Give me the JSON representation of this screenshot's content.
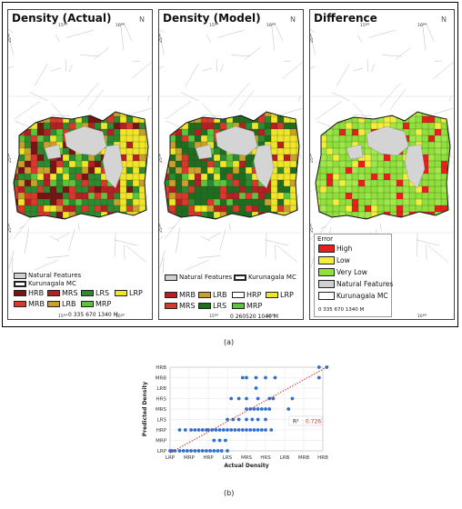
{
  "figure_a": {
    "panels": [
      {
        "title": "Density (Actual)"
      },
      {
        "title": "Density (Model)"
      },
      {
        "title": "Difference"
      }
    ],
    "coord_labels": {
      "x_left": "15ᴮᴹ",
      "x_right": "16ᴮᴹ",
      "y_top": "25ᴮᴹ",
      "y_mid": "25ᴮᴹ",
      "y_bot": "25ᴮᴹ"
    },
    "north_label": "N",
    "legend_actual": {
      "natural": "Natural Features",
      "mc": "Kurunagala MC",
      "items": [
        {
          "code": "HRB",
          "color": "#7a1414"
        },
        {
          "code": "MRS",
          "color": "#b52020"
        },
        {
          "code": "LRS",
          "color": "#2d8a2d"
        },
        {
          "code": "LRP",
          "color": "#f0e628"
        },
        {
          "code": "MRB",
          "color": "#d83a2a"
        },
        {
          "code": "LRB",
          "color": "#c8a02a"
        },
        {
          "code": "MRP",
          "color": "#5cc43a"
        }
      ],
      "scale": "0   335 670       1340 M"
    },
    "legend_model": {
      "natural": "Natural Features",
      "mc": "Kurunagala MC",
      "items": [
        {
          "code": "MRB",
          "color": "#b52020"
        },
        {
          "code": "LRB",
          "color": "#c8a02a"
        },
        {
          "code": "HRP",
          "color": "#ffffff"
        },
        {
          "code": "LRP",
          "color": "#f0e628"
        },
        {
          "code": "MRS",
          "color": "#d83a2a"
        },
        {
          "code": "LRS",
          "color": "#1f6e1f"
        },
        {
          "code": "MRP",
          "color": "#5cc43a"
        }
      ],
      "scale": "0  260520     1040  M"
    },
    "legend_diff": {
      "heading": "Error",
      "items": [
        {
          "label": "High",
          "color": "#e8201c"
        },
        {
          "label": "Low",
          "color": "#f3ee3a"
        },
        {
          "label": "Very Low",
          "color": "#8fe03a"
        },
        {
          "label": "Natural Features",
          "color": "#d0d0d0"
        },
        {
          "label": "Kurunagala MC",
          "color": "#ffffff"
        }
      ],
      "scale": "0   335 670       1340 M"
    },
    "caption": "(a)"
  },
  "chart_data": {
    "type": "scatter",
    "xlabel": "Actual Density",
    "ylabel": "Predicted Density",
    "categories": [
      "LRP",
      "MRP",
      "HRP",
      "LRS",
      "MRS",
      "HRS",
      "LRB",
      "MRB",
      "HRB"
    ],
    "points": [
      [
        0,
        0
      ],
      [
        0.1,
        0
      ],
      [
        0.25,
        0
      ],
      [
        0.5,
        0
      ],
      [
        0.7,
        0
      ],
      [
        0.9,
        0
      ],
      [
        1.1,
        0
      ],
      [
        1.3,
        0
      ],
      [
        1.5,
        0
      ],
      [
        1.7,
        0
      ],
      [
        1.9,
        0
      ],
      [
        2.1,
        0
      ],
      [
        2.3,
        0
      ],
      [
        2.5,
        0
      ],
      [
        2.7,
        0
      ],
      [
        3,
        0
      ],
      [
        2.3,
        1
      ],
      [
        2.6,
        1
      ],
      [
        2.9,
        1
      ],
      [
        0.5,
        2
      ],
      [
        0.8,
        2
      ],
      [
        1.1,
        2
      ],
      [
        1.3,
        2
      ],
      [
        1.5,
        2
      ],
      [
        1.7,
        2
      ],
      [
        1.9,
        2
      ],
      [
        2.0,
        2
      ],
      [
        2.2,
        2
      ],
      [
        2.4,
        2
      ],
      [
        2.6,
        2
      ],
      [
        2.8,
        2
      ],
      [
        3.0,
        2
      ],
      [
        3.2,
        2
      ],
      [
        3.4,
        2
      ],
      [
        3.6,
        2
      ],
      [
        3.8,
        2
      ],
      [
        4.0,
        2
      ],
      [
        4.2,
        2
      ],
      [
        4.4,
        2
      ],
      [
        4.6,
        2
      ],
      [
        4.8,
        2
      ],
      [
        5.0,
        2
      ],
      [
        5.3,
        2
      ],
      [
        3.0,
        3
      ],
      [
        3.3,
        3
      ],
      [
        3.6,
        3
      ],
      [
        4.0,
        3
      ],
      [
        4.3,
        3
      ],
      [
        4.6,
        3
      ],
      [
        5.0,
        3
      ],
      [
        4.0,
        4
      ],
      [
        4.2,
        4
      ],
      [
        4.4,
        4
      ],
      [
        4.6,
        4
      ],
      [
        4.8,
        4
      ],
      [
        5.0,
        4
      ],
      [
        5.2,
        4
      ],
      [
        6.2,
        4
      ],
      [
        3.2,
        5
      ],
      [
        3.6,
        5
      ],
      [
        4.0,
        5
      ],
      [
        4.6,
        5
      ],
      [
        5.2,
        5
      ],
      [
        5.4,
        5
      ],
      [
        6.4,
        5
      ],
      [
        4.5,
        6
      ],
      [
        3.8,
        7
      ],
      [
        4.0,
        7
      ],
      [
        4.5,
        7
      ],
      [
        5.0,
        7
      ],
      [
        5.5,
        7
      ],
      [
        7.8,
        7
      ],
      [
        7.8,
        8
      ],
      [
        8.2,
        8
      ]
    ],
    "trendline": {
      "x0": 0,
      "y0": -0.2,
      "x1": 8.3,
      "y1": 8.1,
      "color": "#c0392b"
    },
    "r2_label": "R²",
    "r2_value": ": 0.726",
    "grid": true,
    "caption": "(b)"
  }
}
